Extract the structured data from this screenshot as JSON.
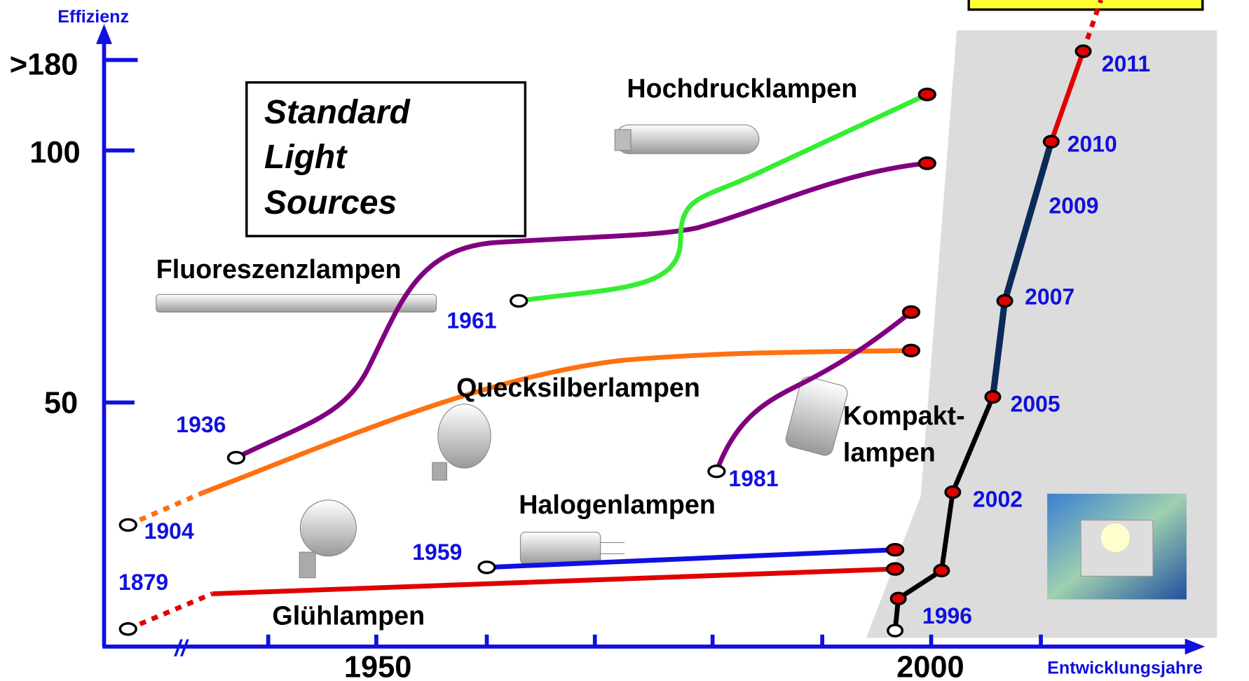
{
  "axes": {
    "y_title": "Effizienz",
    "x_title": "Entwicklungsjahre",
    "y_ticks": [
      ">180",
      "100",
      "50"
    ],
    "x_ticks": [
      "1950",
      "2000"
    ],
    "break": "//"
  },
  "box": {
    "lines": [
      "Standard",
      "Light",
      "Sources"
    ]
  },
  "lamps": [
    {
      "name": "Glühlampen",
      "start": "1879"
    },
    {
      "name": "Halogenlampen",
      "start": "1959"
    },
    {
      "name": "Quecksilberlampen",
      "start": "1904"
    },
    {
      "name": "Fluoreszenzlampen",
      "start": "1936"
    },
    {
      "name": "Hochdrucklampen",
      "start": "1961"
    },
    {
      "name_lines": [
        "Kompakt-",
        "lampen"
      ],
      "start": "1981"
    }
  ],
  "led_years": [
    "1996",
    "2002",
    "2005",
    "2007",
    "2009",
    "2010",
    "2011"
  ]
}
